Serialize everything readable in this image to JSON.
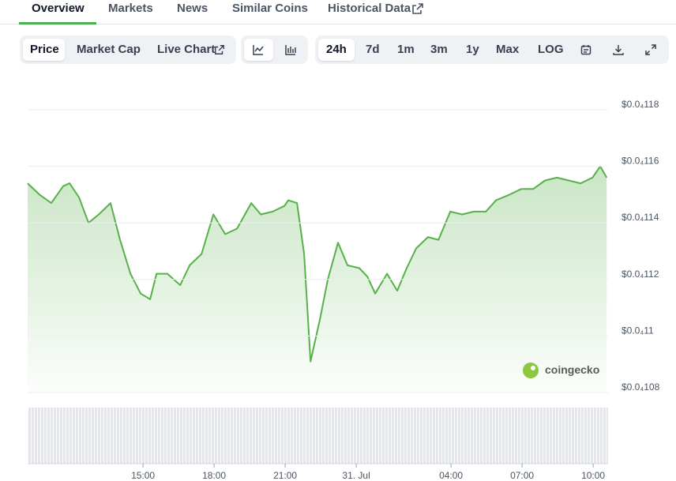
{
  "tabs": [
    "Overview",
    "Markets",
    "News",
    "Similar Coins",
    "Historical Data"
  ],
  "chart_views": [
    "Price",
    "Market Cap",
    "Live Chart"
  ],
  "ranges": [
    "24h",
    "7d",
    "1m",
    "3m",
    "1y",
    "Max",
    "LOG"
  ],
  "chart_data": {
    "type": "area",
    "color": "#57b04a",
    "watermark": "coingecko",
    "x": [
      10.13,
      10.63,
      11.13,
      11.63,
      11.9,
      12.3,
      12.7,
      13.13,
      13.63,
      14.03,
      14.47,
      14.9,
      15.3,
      15.57,
      16.03,
      16.57,
      16.97,
      17.47,
      17.97,
      18.47,
      18.97,
      19.57,
      19.97,
      20.47,
      20.97,
      21.13,
      21.5,
      21.8,
      22.07,
      22.47,
      22.8,
      23.23,
      23.63,
      24.13,
      24.47,
      24.8,
      25.3,
      25.73,
      26.13,
      26.53,
      27.03,
      27.47,
      27.97,
      28.47,
      28.97,
      29.47,
      29.9,
      30.47,
      30.97,
      31.47,
      31.97,
      32.47,
      32.97,
      33.47,
      33.97,
      34.3,
      34.57
    ],
    "values": [
      1.154e-05,
      1.15e-05,
      1.147e-05,
      1.153e-05,
      1.154e-05,
      1.149e-05,
      1.14e-05,
      1.143e-05,
      1.147e-05,
      1.134e-05,
      1.122e-05,
      1.115e-05,
      1.113e-05,
      1.122e-05,
      1.122e-05,
      1.118e-05,
      1.125e-05,
      1.129e-05,
      1.143e-05,
      1.136e-05,
      1.138e-05,
      1.147e-05,
      1.143e-05,
      1.144e-05,
      1.146e-05,
      1.148e-05,
      1.147e-05,
      1.129e-05,
      1.091e-05,
      1.106e-05,
      1.12e-05,
      1.133e-05,
      1.125e-05,
      1.124e-05,
      1.121e-05,
      1.115e-05,
      1.122e-05,
      1.116e-05,
      1.124e-05,
      1.131e-05,
      1.135e-05,
      1.134e-05,
      1.144e-05,
      1.143e-05,
      1.144e-05,
      1.144e-05,
      1.148e-05,
      1.15e-05,
      1.152e-05,
      1.152e-05,
      1.155e-05,
      1.156e-05,
      1.155e-05,
      1.154e-05,
      1.156e-05,
      1.16e-05,
      1.156e-05
    ],
    "xlim": [
      10.13,
      34.63
    ],
    "xticks": [
      {
        "value": 15,
        "label": "15:00"
      },
      {
        "value": 18,
        "label": "18:00"
      },
      {
        "value": 21,
        "label": "21:00"
      },
      {
        "value": 24,
        "label": "31. Jul"
      },
      {
        "value": 28,
        "label": "04:00"
      },
      {
        "value": 31,
        "label": "07:00"
      },
      {
        "value": 34,
        "label": "10:00"
      }
    ],
    "ylim": [
      1.08e-05,
      1.18e-05
    ],
    "yticks": [
      {
        "value": 1.08e-05,
        "label": "$0.0₄108"
      },
      {
        "value": 1.1e-05,
        "label": "$0.0₄11"
      },
      {
        "value": 1.12e-05,
        "label": "$0.0₄112"
      },
      {
        "value": 1.14e-05,
        "label": "$0.0₄114"
      },
      {
        "value": 1.16e-05,
        "label": "$0.0₄116"
      },
      {
        "value": 1.18e-05,
        "label": "$0.0₄118"
      }
    ],
    "grid": true
  }
}
